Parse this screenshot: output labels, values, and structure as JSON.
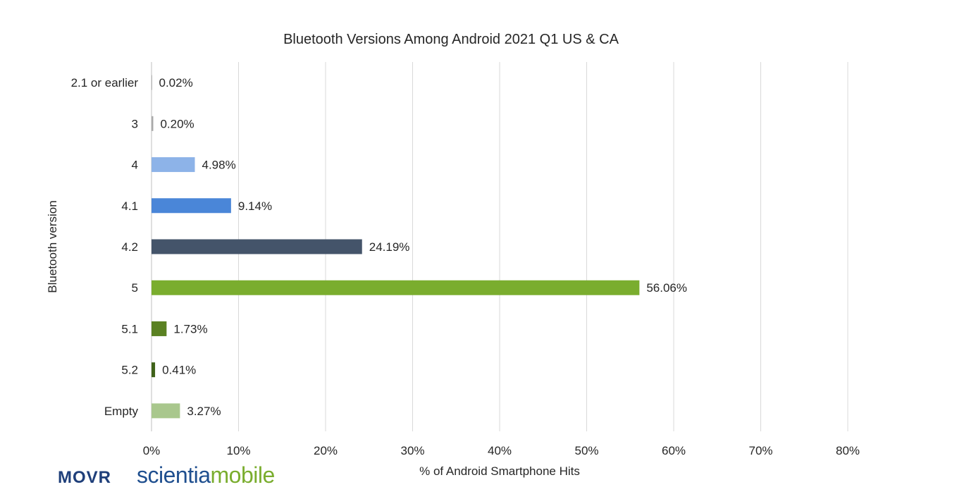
{
  "chart_data": {
    "type": "bar",
    "orientation": "horizontal",
    "title": "Bluetooth Versions Among Android 2021 Q1 US & CA",
    "xlabel": "% of Android Smartphone Hits",
    "ylabel": "Bluetooth version",
    "xlim": [
      0,
      80
    ],
    "x_ticks": [
      "0%",
      "10%",
      "20%",
      "30%",
      "40%",
      "50%",
      "60%",
      "70%",
      "80%"
    ],
    "grid": true,
    "categories": [
      "2.1 or earlier",
      "3",
      "4",
      "4.1",
      "4.2",
      "5",
      "5.1",
      "5.2",
      "Empty"
    ],
    "values": [
      0.02,
      0.2,
      4.98,
      9.14,
      24.19,
      56.06,
      1.73,
      0.41,
      3.27
    ],
    "data_labels": [
      "0.02%",
      "0.20%",
      "4.98%",
      "9.14%",
      "24.19%",
      "56.06%",
      "1.73%",
      "0.41%",
      "3.27%"
    ],
    "colors": [
      "#6e6e6e",
      "#a9a9a9",
      "#8db3e8",
      "#4a86d8",
      "#44546a",
      "#7aad2e",
      "#5a8122",
      "#3f6219",
      "#a9c78d"
    ]
  },
  "logos": {
    "movr": "MOVR",
    "brand_part1": "scientia",
    "brand_part2": "mobile"
  }
}
